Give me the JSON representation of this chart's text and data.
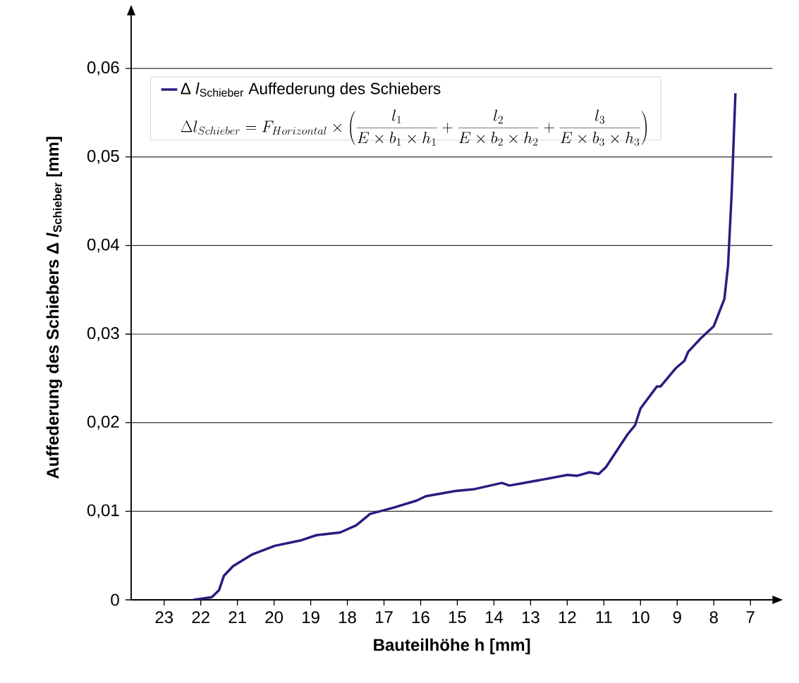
{
  "chart_data": {
    "type": "line",
    "xlabel": "Bauteilhöhe h [mm]",
    "ylabel": "Auffederung des Schiebers  Δ *l*$_{Schieber}$  [mm]",
    "annotations": [
      "\\Delta l_{Schieber}=F_{Horizontal}\\times\\left(\\frac{l_1}{E\\times b_1\\times h_1}+\\frac{l_2}{E\\times b_2\\times h_2}+\\frac{l_3}{E\\times b_3\\times h_3}\\right)"
    ],
    "series": [
      {
        "name": "Δ *l*$_{Schieber}$ Auffederung des Schiebers",
        "color": "#2b1b80",
        "x": [
          22.2,
          21.7,
          21.5,
          21.37,
          21.12,
          20.61,
          19.98,
          19.28,
          18.84,
          18.2,
          17.76,
          17.38,
          16.75,
          16.11,
          15.86,
          15.04,
          14.53,
          13.78,
          13.58,
          12.64,
          11.99,
          11.74,
          11.39,
          11.14,
          10.94,
          10.35,
          10.15,
          10.0,
          9.55,
          9.45,
          9.05,
          8.8,
          8.7,
          8.36,
          8.0,
          7.71,
          7.61,
          7.51,
          7.41
        ],
        "values": [
          0,
          0.0003,
          0.0011,
          0.0027,
          0.0038,
          0.0051,
          0.0061,
          0.0067,
          0.0073,
          0.0076,
          0.0084,
          0.0097,
          0.0104,
          0.0112,
          0.0117,
          0.0123,
          0.0125,
          0.0132,
          0.0129,
          0.0136,
          0.0141,
          0.014,
          0.0144,
          0.0142,
          0.015,
          0.0187,
          0.0197,
          0.0216,
          0.0241,
          0.0241,
          0.0261,
          0.027,
          0.028,
          0.0295,
          0.0309,
          0.034,
          0.0378,
          0.0461,
          0.0572
        ]
      }
    ],
    "xlim": [
      23.9,
      6.4
    ],
    "xticks": [
      23,
      22,
      21,
      20,
      19,
      18,
      17,
      16,
      15,
      14,
      13,
      12,
      11,
      10,
      9,
      8,
      7
    ],
    "ylim": [
      0,
      0.066
    ],
    "yticks": [
      0,
      {
        "value": 0.01,
        "label": "0,01"
      },
      {
        "value": 0.02,
        "label": "0,02"
      },
      {
        "value": 0.03,
        "label": "0,03"
      },
      {
        "value": 0.04,
        "label": "0,04"
      },
      {
        "value": 0.05,
        "label": "0,05"
      },
      {
        "value": 0.06,
        "label": "0,06"
      }
    ],
    "grid": "y",
    "legend": "top left",
    "marker": "none",
    "line_style": "solid"
  }
}
